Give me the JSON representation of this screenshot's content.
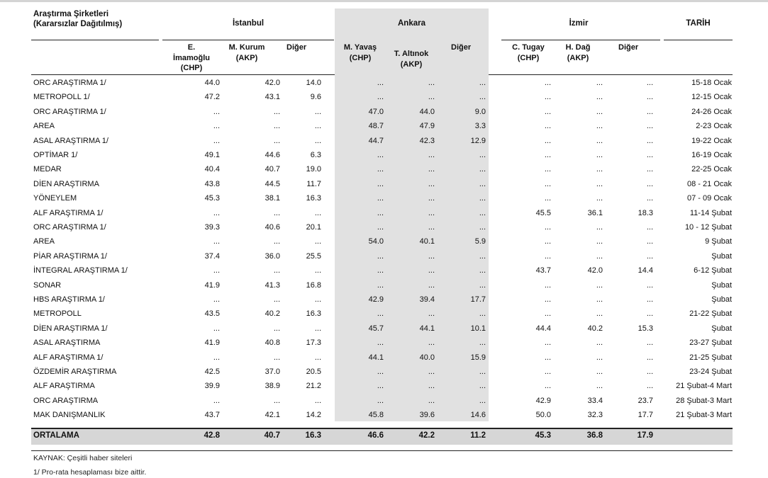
{
  "header": {
    "title_line1": "Araştırma Şirketleri",
    "title_line2": "(Kararsızlar Dağıtılmış)",
    "istanbul": "İstanbul",
    "ankara": "Ankara",
    "izmir": "İzmir",
    "tarih": "TARİH",
    "istanbul_cols": [
      [
        "E.",
        "İmamoğlu",
        "(CHP)"
      ],
      [
        "M. Kurum",
        "(AKP)"
      ],
      [
        "Diğer"
      ]
    ],
    "ankara_cols": [
      [
        "M. Yavaş",
        "(CHP)"
      ],
      [
        "T. Altınok",
        "(AKP)"
      ],
      [
        "Diğer"
      ]
    ],
    "izmir_cols": [
      [
        "C. Tugay",
        "(CHP)"
      ],
      [
        "H. Dağ",
        "(AKP)"
      ],
      [
        "Diğer"
      ]
    ]
  },
  "rows": [
    {
      "name": "ORC ARAŞTIRMA 1/",
      "v": [
        "44.0",
        "42.0",
        "14.0",
        "...",
        "...",
        "...",
        "...",
        "...",
        "..."
      ],
      "date": "15-18 Ocak"
    },
    {
      "name": "METROPOLL 1/",
      "v": [
        "47.2",
        "43.1",
        "9.6",
        "...",
        "...",
        "...",
        "...",
        "...",
        "..."
      ],
      "date": "12-15 Ocak"
    },
    {
      "name": "ORC ARAŞTIRMA 1/",
      "v": [
        "...",
        "...",
        "...",
        "47.0",
        "44.0",
        "9.0",
        "...",
        "...",
        "..."
      ],
      "date": "24-26 Ocak"
    },
    {
      "name": "AREA",
      "v": [
        "...",
        "...",
        "...",
        "48.7",
        "47.9",
        "3.3",
        "...",
        "...",
        "..."
      ],
      "date": "2-23 Ocak"
    },
    {
      "name": "ASAL ARAŞTIRMA 1/",
      "v": [
        "...",
        "...",
        "...",
        "44.7",
        "42.3",
        "12.9",
        "...",
        "...",
        "..."
      ],
      "date": "19-22 Ocak"
    },
    {
      "name": "OPTİMAR 1/",
      "v": [
        "49.1",
        "44.6",
        "6.3",
        "...",
        "...",
        "...",
        "...",
        "...",
        "..."
      ],
      "date": "16-19 Ocak"
    },
    {
      "name": "MEDAR",
      "v": [
        "40.4",
        "40.7",
        "19.0",
        "...",
        "...",
        "...",
        "...",
        "...",
        "..."
      ],
      "date": "22-25 Ocak"
    },
    {
      "name": "DİEN ARAŞTIRMA",
      "v": [
        "43.8",
        "44.5",
        "11.7",
        "...",
        "...",
        "...",
        "...",
        "...",
        "..."
      ],
      "date": "08 - 21 Ocak"
    },
    {
      "name": "YÖNEYLEM",
      "v": [
        "45.3",
        "38.1",
        "16.3",
        "...",
        "...",
        "...",
        "...",
        "...",
        "..."
      ],
      "date": "07 - 09 Ocak"
    },
    {
      "name": "ALF ARAŞTIRMA 1/",
      "v": [
        "...",
        "...",
        "...",
        "...",
        "...",
        "...",
        "45.5",
        "36.1",
        "18.3"
      ],
      "date": "11-14 Şubat"
    },
    {
      "name": "ORC ARAŞTIRMA 1/",
      "v": [
        "39.3",
        "40.6",
        "20.1",
        "...",
        "...",
        "...",
        "...",
        "...",
        "..."
      ],
      "date": "10 - 12 Şubat"
    },
    {
      "name": "AREA",
      "v": [
        "...",
        "...",
        "...",
        "54.0",
        "40.1",
        "5.9",
        "...",
        "...",
        "..."
      ],
      "date": "9 Şubat"
    },
    {
      "name": "PİAR ARAŞTIRMA 1/",
      "v": [
        "37.4",
        "36.0",
        "25.5",
        "...",
        "...",
        "...",
        "...",
        "...",
        "..."
      ],
      "date": "Şubat"
    },
    {
      "name": "İNTEGRAL ARAŞTIRMA 1/",
      "v": [
        "...",
        "...",
        "...",
        "...",
        "...",
        "...",
        "43.7",
        "42.0",
        "14.4"
      ],
      "date": "6-12 Şubat"
    },
    {
      "name": "SONAR",
      "v": [
        "41.9",
        "41.3",
        "16.8",
        "...",
        "...",
        "...",
        "...",
        "...",
        "..."
      ],
      "date": "Şubat"
    },
    {
      "name": "HBS ARAŞTIRMA 1/",
      "v": [
        "...",
        "...",
        "...",
        "42.9",
        "39.4",
        "17.7",
        "...",
        "...",
        "..."
      ],
      "date": "Şubat"
    },
    {
      "name": "METROPOLL",
      "v": [
        "43.5",
        "40.2",
        "16.3",
        "...",
        "...",
        "...",
        "...",
        "...",
        "..."
      ],
      "date": "21-22 Şubat"
    },
    {
      "name": "DİEN ARAŞTIRMA 1/",
      "v": [
        "...",
        "...",
        "...",
        "45.7",
        "44.1",
        "10.1",
        "44.4",
        "40.2",
        "15.3"
      ],
      "date": "Şubat"
    },
    {
      "name": "ASAL ARAŞTIRMA",
      "v": [
        "41.9",
        "40.8",
        "17.3",
        "...",
        "...",
        "...",
        "...",
        "...",
        "..."
      ],
      "date": "23-27 Şubat"
    },
    {
      "name": "ALF ARAŞTIRMA 1/",
      "v": [
        "...",
        "...",
        "...",
        "44.1",
        "40.0",
        "15.9",
        "...",
        "...",
        "..."
      ],
      "date": "21-25 Şubat"
    },
    {
      "name": "ÖZDEMİR ARAŞTIRMA",
      "v": [
        "42.5",
        "37.0",
        "20.5",
        "...",
        "...",
        "...",
        "...",
        "...",
        "..."
      ],
      "date": "23-24 Şubat"
    },
    {
      "name": "ALF ARAŞTIRMA",
      "v": [
        "39.9",
        "38.9",
        "21.2",
        "...",
        "...",
        "...",
        "...",
        "...",
        "..."
      ],
      "date": "21 Şubat-4 Mart"
    },
    {
      "name": "ORC ARAŞTIRMA",
      "v": [
        "...",
        "...",
        "...",
        "...",
        "...",
        "...",
        "42.9",
        "33.4",
        "23.7"
      ],
      "date": "28 Şubat-3 Mart"
    },
    {
      "name": "MAK DANIŞMANLIK",
      "v": [
        "43.7",
        "42.1",
        "14.2",
        "45.8",
        "39.6",
        "14.6",
        "50.0",
        "32.3",
        "17.7"
      ],
      "date": "21 Şubat-3 Mart"
    }
  ],
  "average": {
    "label": "ORTALAMA",
    "v": [
      "42.8",
      "40.7",
      "16.3",
      "46.6",
      "42.2",
      "11.2",
      "45.3",
      "36.8",
      "17.9"
    ]
  },
  "footer": {
    "source": "KAYNAK: Çeşitli haber siteleri",
    "note": "1/ Pro-rata hesaplaması bize aittir."
  }
}
